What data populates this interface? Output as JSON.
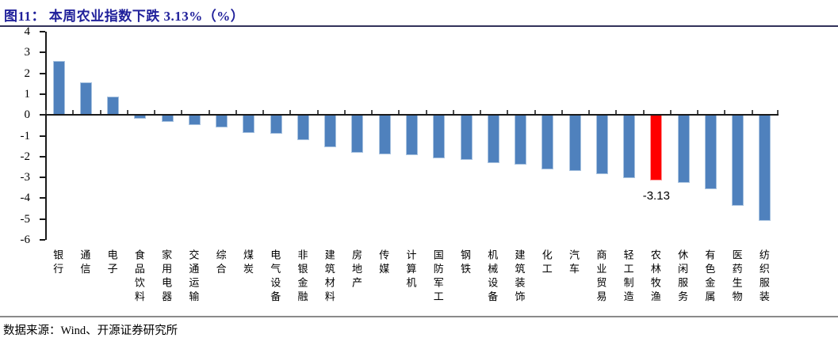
{
  "title": "图11： 本周农业指数下跌 3.13%（%）",
  "source": "数据来源：Wind、开源证券研究所",
  "colors": {
    "bar": "#4f81bd",
    "bar_edge": "#a9c3e0",
    "highlight": "#ff0000",
    "title_text": "#21219b",
    "axis": "#1a1a1a"
  },
  "chart_data": {
    "type": "bar",
    "title": "本周农业指数下跌 3.13%（%）",
    "categories": [
      "银行",
      "通信",
      "电子",
      "食品饮料",
      "家用电器",
      "交通运输",
      "综合",
      "煤炭",
      "电气设备",
      "非银金融",
      "建筑材料",
      "房地产",
      "传媒",
      "计算机",
      "国防军工",
      "钢铁",
      "机械设备",
      "建筑装饰",
      "化工",
      "汽车",
      "商业贸易",
      "轻工制造",
      "农林牧渔",
      "休闲服务",
      "有色金属",
      "医药生物",
      "纺织服装"
    ],
    "values": [
      2.6,
      1.55,
      0.9,
      -0.2,
      -0.35,
      -0.5,
      -0.6,
      -0.85,
      -0.9,
      -1.2,
      -1.55,
      -1.8,
      -1.9,
      -1.95,
      -2.1,
      -2.15,
      -2.3,
      -2.4,
      -2.6,
      -2.7,
      -2.85,
      -3.05,
      -3.13,
      -3.25,
      -3.55,
      -4.35,
      -5.1
    ],
    "highlight_index": 22,
    "highlight_category": "农林牧渔",
    "highlight_label": "-3.13",
    "xlabel": "",
    "ylabel": "",
    "ylim": [
      -6,
      4
    ],
    "ytick_step": 1,
    "yticks": [
      4,
      3,
      2,
      1,
      0,
      -1,
      -2,
      -3,
      -4,
      -5,
      -6
    ],
    "grid": false,
    "legend": "none"
  }
}
